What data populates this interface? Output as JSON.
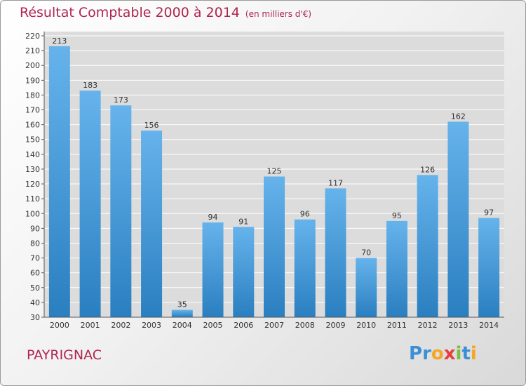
{
  "header": {
    "title": "Résultat Comptable 2000 à 2014",
    "unit": "(en milliers d'€)"
  },
  "commune": "PAYRIGNAC",
  "logo": {
    "text": "Proxiti",
    "letters": [
      "P",
      "r",
      "o",
      "x",
      "i",
      "t",
      "i"
    ],
    "colors": [
      "#3a8fd6",
      "#3a8fd6",
      "#f5a623",
      "#e83e3e",
      "#7ac143",
      "#3a8fd6",
      "#f5a623"
    ]
  },
  "colors": {
    "bar_light": "#66b3ec",
    "bar_dark": "#2a7fc0",
    "title": "#b0254f",
    "grid": "#ffffff",
    "plot_bg": "#dcdcdc"
  },
  "chart_data": {
    "type": "bar",
    "title": "Résultat Comptable 2000 à 2014",
    "categories": [
      "2000",
      "2001",
      "2002",
      "2003",
      "2004",
      "2005",
      "2006",
      "2007",
      "2008",
      "2009",
      "2010",
      "2011",
      "2012",
      "2013",
      "2014"
    ],
    "values": [
      213,
      183,
      173,
      156,
      35,
      94,
      91,
      125,
      96,
      117,
      70,
      95,
      126,
      162,
      97
    ],
    "ylim": [
      30,
      220
    ],
    "yticks": [
      30,
      40,
      50,
      60,
      70,
      80,
      90,
      100,
      110,
      120,
      130,
      140,
      150,
      160,
      170,
      180,
      190,
      200,
      210,
      220
    ],
    "grid": true,
    "data_labels": true
  }
}
